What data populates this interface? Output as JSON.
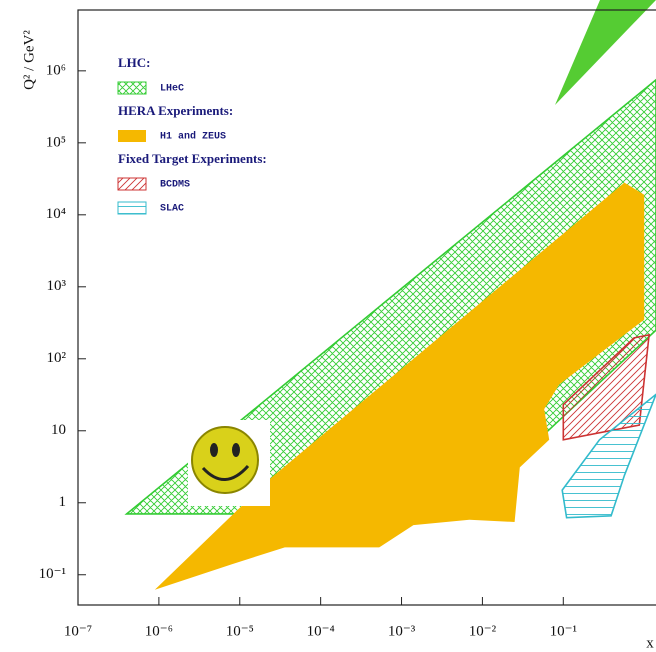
{
  "chart_data": {
    "type": "region",
    "y_label": "Q² / GeV²",
    "x_label": "x",
    "xscale": "log",
    "yscale": "log",
    "xlim": [
      1e-07,
      1.4
    ],
    "ylim": [
      0.038,
      7000000
    ],
    "xticks": [
      {
        "value": 1e-07,
        "label": "10⁻⁷"
      },
      {
        "value": 1e-06,
        "label": "10⁻⁶"
      },
      {
        "value": 1e-05,
        "label": "10⁻⁵"
      },
      {
        "value": 0.0001,
        "label": "10⁻⁴"
      },
      {
        "value": 0.001,
        "label": "10⁻³"
      },
      {
        "value": 0.01,
        "label": "10⁻²"
      },
      {
        "value": 0.1,
        "label": "10⁻¹"
      }
    ],
    "yticks": [
      {
        "value": 0.1,
        "label": "10⁻¹"
      },
      1,
      10,
      {
        "value": 100,
        "label": "10²"
      },
      {
        "value": 1000,
        "label": "10³"
      },
      {
        "value": 10000,
        "label": "10⁴"
      },
      {
        "value": 100000,
        "label": "10⁵"
      },
      {
        "value": 1000000,
        "label": "10⁶"
      }
    ],
    "legend_headings": [
      "LHC:",
      "HERA Experiments:",
      "Fixed Target Experiments:"
    ],
    "series": [
      {
        "name": "LHeC",
        "heading": 0,
        "color": "#33cc33",
        "fill": "crosshatch",
        "x": [
          4e-07,
          1.4,
          1.4,
          0.089,
          0.0052
        ],
        "y": [
          0.7,
          750000,
          250,
          14,
          0.7
        ]
      },
      {
        "name": "H1 and ZEUS",
        "heading": 1,
        "color": "#f5b800",
        "fill": "solid",
        "x": [
          8.9e-07,
          2.3e-05,
          0.57,
          1.0,
          1.0,
          0.089,
          0.058,
          0.067,
          0.029,
          0.025,
          0.0069,
          0.0014,
          0.00053,
          3.6e-05,
          8e-06
        ],
        "y": [
          0.062,
          2.1,
          28000,
          19000,
          350,
          44,
          20,
          7.5,
          3.1,
          0.54,
          0.58,
          0.49,
          0.24,
          0.24,
          0.14
        ]
      },
      {
        "name": "BCDMS",
        "heading": 2,
        "color": "#cc3333",
        "fill": "diagonal",
        "x": [
          0.1,
          0.1,
          0.87,
          1.15,
          0.75
        ],
        "y": [
          23,
          7.5,
          12,
          215,
          195
        ]
      },
      {
        "name": "SLAC",
        "heading": 2,
        "color": "#33bbcc",
        "fill": "horizontal",
        "x": [
          0.097,
          0.11,
          0.39,
          0.57,
          1.4,
          0.28
        ],
        "y": [
          1.5,
          0.62,
          0.66,
          2.4,
          32,
          7.5
        ]
      }
    ]
  }
}
